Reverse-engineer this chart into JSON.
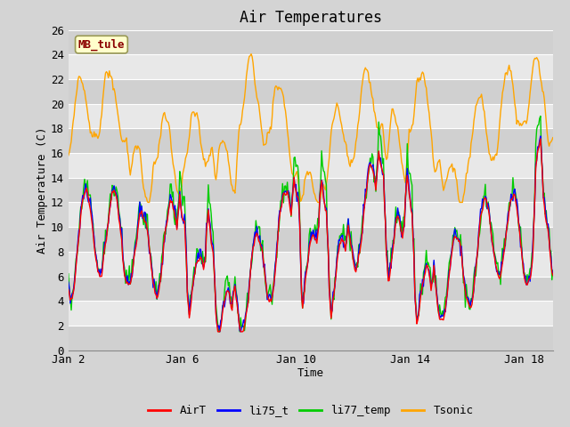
{
  "title": "Air Temperatures",
  "xlabel": "Time",
  "ylabel": "Air Temperature (C)",
  "ylim": [
    0,
    26
  ],
  "yticks": [
    0,
    2,
    4,
    6,
    8,
    10,
    12,
    14,
    16,
    18,
    20,
    22,
    24,
    26
  ],
  "xtick_labels": [
    "Jan 2",
    "Jan 6",
    "Jan 10",
    "Jan 14",
    "Jan 18"
  ],
  "xtick_positions": [
    0,
    4,
    8,
    12,
    16
  ],
  "xlim": [
    0,
    17
  ],
  "annotation_text": "MB_tule",
  "annotation_color": "#8b0000",
  "annotation_bg": "#ffffcc",
  "lines": {
    "AirT": {
      "color": "#ff0000",
      "lw": 1.0
    },
    "li75_t": {
      "color": "#0000ff",
      "lw": 1.0
    },
    "li77_temp": {
      "color": "#00cc00",
      "lw": 1.0
    },
    "Tsonic": {
      "color": "#ffa500",
      "lw": 1.0
    }
  },
  "legend_labels": [
    "AirT",
    "li75_t",
    "li77_temp",
    "Tsonic"
  ],
  "legend_colors": [
    "#ff0000",
    "#0000ff",
    "#00cc00",
    "#ffa500"
  ],
  "title_fontsize": 12,
  "label_fontsize": 9,
  "tick_fontsize": 9,
  "fig_bg": "#d4d4d4",
  "plot_bg_light": "#e8e8e8",
  "plot_bg_dark": "#d0d0d0"
}
